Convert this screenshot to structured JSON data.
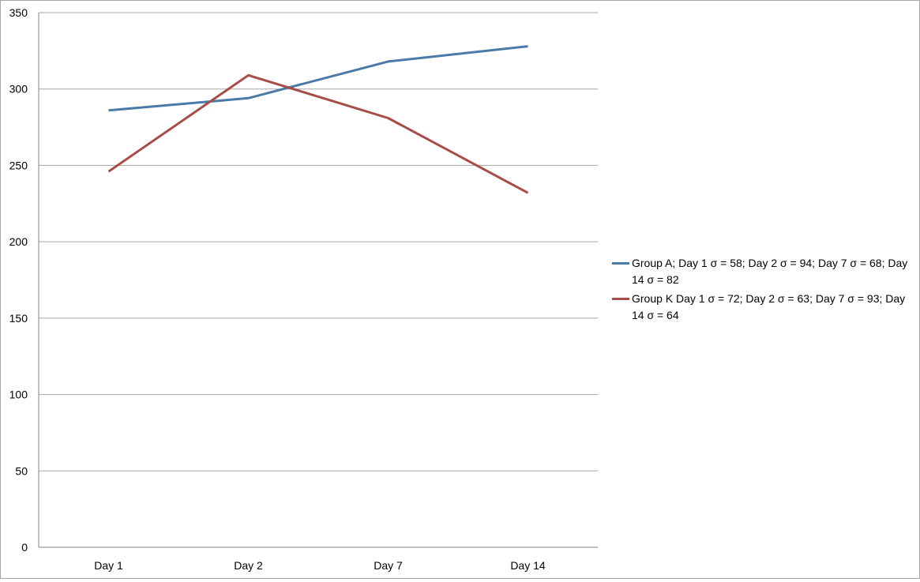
{
  "chart_data": {
    "type": "line",
    "categories": [
      "Day 1",
      "Day 2",
      "Day 7",
      "Day 14"
    ],
    "series": [
      {
        "name": "Group A; Day 1 σ = 58; Day 2 σ = 94; Day 7 σ = 68; Day 14 σ = 82",
        "color": "#4a7aa8",
        "values": [
          286,
          294,
          318,
          328
        ]
      },
      {
        "name": "Group K Day 1 σ = 72; Day 2 σ = 63; Day 7 σ = 93; Day 14 σ = 64",
        "color": "#a84c47",
        "values": [
          246,
          309,
          281,
          232
        ]
      }
    ],
    "ylim": [
      0,
      350
    ],
    "yticks": [
      0,
      50,
      100,
      150,
      200,
      250,
      300,
      350
    ],
    "ytick_labels": [
      "0",
      "50",
      "100",
      "150",
      "200",
      "250",
      "300",
      "350"
    ],
    "grid": true,
    "grid_color": "#a6a6a6",
    "legend_position": "right"
  }
}
